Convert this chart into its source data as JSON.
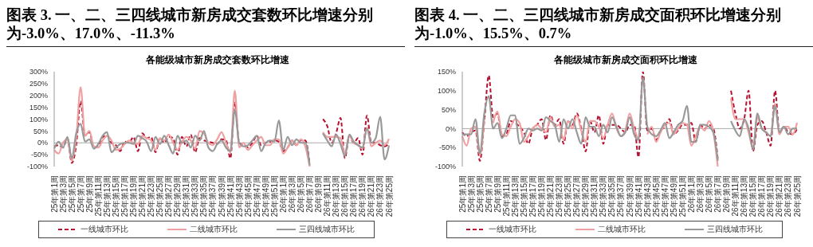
{
  "chart_data": [
    {
      "type": "line",
      "title": "图表 3. 一、二、三四线城市新房成交套数环比增速分别为-3.0%、17.0%、-11.3%",
      "subtitle": "各能级城市新房成交套数环比增速",
      "categories": [
        "25年第1周",
        null,
        "25年第3周",
        null,
        "25年第5周",
        null,
        "25年第7周",
        null,
        "25年第9周",
        null,
        "25年第11周",
        null,
        "25年第13周",
        null,
        "25年第15周",
        null,
        "25年第17周",
        null,
        "25年第19周",
        null,
        "25年第21周",
        null,
        "25年第23周",
        null,
        "25年第25周",
        null,
        "25年第27周",
        null,
        "25年第29周",
        null,
        "25年第31周",
        null,
        "25年第33周",
        null,
        "25年第35周",
        null,
        "25年第37周",
        null,
        "25年第39周",
        null,
        "25年第41周",
        null,
        "25年第43周",
        null,
        "25年第45周",
        null,
        "25年第47周",
        null,
        "25年第49周",
        null,
        "25年第51周",
        null,
        "26年第1周",
        null,
        "26年第3周",
        null,
        "26年第5周",
        null,
        "26年第7周",
        null,
        "26年第9周",
        null,
        "26年第11周",
        null,
        "26年第13周",
        null,
        "26年第15周",
        null,
        "26年第17周",
        null,
        "26年第19周",
        null,
        "26年第21周",
        null,
        "26年第23周",
        null,
        "26年第25周"
      ],
      "series": [
        {
          "name": "一线城市环比",
          "color": "#b5112f",
          "line_style": "dashed",
          "values": [
            -15,
            -10,
            -20,
            20,
            -85,
            -10,
            175,
            30,
            45,
            -20,
            -15,
            25,
            30,
            0,
            -10,
            -35,
            5,
            0,
            25,
            -35,
            40,
            20,
            25,
            -40,
            20,
            0,
            25,
            20,
            -50,
            25,
            -15,
            35,
            -40,
            20,
            10,
            5,
            0,
            -5,
            15,
            10,
            -65,
            170,
            0,
            -10,
            -20,
            0,
            30,
            -10,
            0,
            5,
            10,
            5,
            -35,
            -20,
            10,
            -10,
            10,
            10,
            -90,
            null,
            null,
            100,
            70,
            0,
            40,
            105,
            -65,
            30,
            0,
            20,
            -50,
            115,
            0,
            0,
            -10,
            -15,
            -3
          ]
        },
        {
          "name": "二线城市环比",
          "color": "#f0a0a0",
          "line_style": "solid",
          "values": [
            -30,
            -45,
            0,
            15,
            -75,
            20,
            235,
            30,
            50,
            -15,
            -20,
            10,
            30,
            10,
            -30,
            -25,
            -5,
            10,
            0,
            -5,
            30,
            20,
            10,
            -30,
            20,
            10,
            35,
            0,
            -30,
            5,
            25,
            10,
            -25,
            50,
            40,
            0,
            -10,
            15,
            45,
            0,
            -40,
            220,
            -20,
            0,
            -30,
            -10,
            10,
            25,
            -10,
            -10,
            15,
            15,
            -45,
            -20,
            10,
            -10,
            15,
            -15,
            -100,
            null,
            null,
            45,
            25,
            25,
            25,
            20,
            -45,
            30,
            0,
            -10,
            -25,
            65,
            -15,
            0,
            10,
            -10,
            17
          ]
        },
        {
          "name": "三四线城市环比",
          "color": "#999999",
          "line_style": "solid",
          "values": [
            -25,
            5,
            -20,
            25,
            -65,
            40,
            80,
            5,
            15,
            -25,
            -5,
            30,
            45,
            -40,
            -20,
            -5,
            0,
            0,
            -5,
            30,
            20,
            5,
            -35,
            25,
            -5,
            30,
            -10,
            -45,
            30,
            0,
            10,
            -20,
            30,
            10,
            50,
            -20,
            -35,
            -5,
            10,
            -20,
            -35,
            140,
            0,
            -15,
            -10,
            10,
            30,
            -35,
            0,
            10,
            5,
            95,
            -30,
            25,
            -10,
            15,
            0,
            0,
            -95,
            null,
            null,
            40,
            10,
            -15,
            35,
            -5,
            -55,
            35,
            5,
            -10,
            -20,
            60,
            0,
            20,
            110,
            -70,
            -11.3
          ]
        }
      ],
      "ylim": [
        -100,
        300
      ],
      "yticks": [
        {
          "value": -100,
          "label": "-100%"
        },
        {
          "value": -50,
          "label": "-50%"
        },
        {
          "value": 0,
          "label": "0%"
        },
        {
          "value": 50,
          "label": "50%"
        },
        {
          "value": 100,
          "label": "100%"
        },
        {
          "value": 150,
          "label": "150%"
        },
        {
          "value": 200,
          "label": "200%"
        },
        {
          "value": 250,
          "label": "250%"
        },
        {
          "value": 300,
          "label": "300%"
        }
      ],
      "ref_lines": [
        {
          "axis": "y",
          "value": 0,
          "color": "#aaaaaa"
        }
      ],
      "grid": false,
      "legend": "bottom",
      "marker": "none"
    },
    {
      "type": "line",
      "title": "图表 4. 一、二、三四线城市新房成交面积环比增速分别为-1.0%、15.5%、0.7%",
      "subtitle": "各能级城市新房成交面积环比增速",
      "categories": [
        "25年第1周",
        null,
        "25年第3周",
        null,
        "25年第5周",
        null,
        "25年第7周",
        null,
        "25年第9周",
        null,
        "25年第11周",
        null,
        "25年第13周",
        null,
        "25年第15周",
        null,
        "25年第17周",
        null,
        "25年第19周",
        null,
        "25年第21周",
        null,
        "25年第23周",
        null,
        "25年第25周",
        null,
        "25年第27周",
        null,
        "25年第29周",
        null,
        "25年第31周",
        null,
        "25年第33周",
        null,
        "25年第35周",
        null,
        "25年第37周",
        null,
        "25年第39周",
        null,
        "25年第41周",
        null,
        "25年第43周",
        null,
        "25年第45周",
        null,
        "25年第47周",
        null,
        "25年第49周",
        null,
        "25年第51周",
        null,
        "26年第1周",
        null,
        "26年第3周",
        null,
        "26年第5周",
        null,
        "26年第7周",
        null,
        "26年第9周",
        null,
        "26年第11周",
        null,
        "26年第13周",
        null,
        "26年第15周",
        null,
        "26年第17周",
        null,
        "26年第19周",
        null,
        "26年第21周",
        null,
        "26年第23周",
        null,
        "26年第25周"
      ],
      "series": [
        {
          "name": "一线城市环比",
          "color": "#b5112f",
          "line_style": "dashed",
          "values": [
            -10,
            -20,
            -10,
            -5,
            -85,
            20,
            140,
            30,
            40,
            -20,
            -15,
            20,
            15,
            5,
            -10,
            -40,
            0,
            10,
            25,
            -30,
            35,
            10,
            25,
            -40,
            20,
            10,
            40,
            0,
            -60,
            20,
            -10,
            35,
            -40,
            10,
            10,
            10,
            0,
            -10,
            10,
            10,
            -75,
            150,
            -5,
            0,
            -30,
            -5,
            5,
            25,
            -15,
            -5,
            10,
            10,
            15,
            -35,
            10,
            0,
            10,
            0,
            -80,
            null,
            null,
            100,
            40,
            0,
            25,
            100,
            -60,
            10,
            20,
            -10,
            -45,
            100,
            -10,
            5,
            -10,
            -15,
            -1
          ]
        },
        {
          "name": "二线城市环比",
          "color": "#f0a0a0",
          "line_style": "solid",
          "values": [
            -20,
            -45,
            0,
            5,
            -70,
            30,
            null,
            15,
            45,
            -15,
            -20,
            5,
            25,
            15,
            -35,
            -20,
            0,
            10,
            0,
            -10,
            30,
            5,
            10,
            -30,
            20,
            0,
            35,
            -5,
            -35,
            20,
            20,
            5,
            -25,
            10,
            40,
            0,
            -20,
            -5,
            40,
            0,
            -30,
            null,
            -15,
            5,
            -35,
            -10,
            10,
            15,
            -15,
            0,
            15,
            10,
            -45,
            -20,
            5,
            -5,
            20,
            -10,
            -100,
            null,
            null,
            80,
            25,
            25,
            25,
            -10,
            -50,
            30,
            0,
            -10,
            -20,
            65,
            -15,
            5,
            5,
            -15,
            15.5
          ]
        },
        {
          "name": "三四线城市环比",
          "color": "#999999",
          "line_style": "solid",
          "values": [
            -15,
            -15,
            -15,
            25,
            -65,
            40,
            85,
            0,
            15,
            -25,
            0,
            35,
            35,
            -40,
            -25,
            0,
            -5,
            0,
            -5,
            30,
            20,
            10,
            -35,
            25,
            0,
            25,
            -10,
            -40,
            30,
            5,
            5,
            -20,
            10,
            -10,
            30,
            5,
            -20,
            -10,
            30,
            -15,
            -30,
            135,
            5,
            -15,
            -20,
            -5,
            15,
            -25,
            -10,
            10,
            20,
            60,
            -35,
            -35,
            10,
            10,
            5,
            -10,
            -85,
            null,
            null,
            20,
            -5,
            -20,
            25,
            0,
            -55,
            40,
            0,
            -10,
            -20,
            60,
            -10,
            5,
            -15,
            0,
            0.7
          ]
        }
      ],
      "ylim": [
        -100,
        150
      ],
      "yticks": [
        {
          "value": -100,
          "label": "-100%"
        },
        {
          "value": -50,
          "label": "-50%"
        },
        {
          "value": 0,
          "label": "0%"
        },
        {
          "value": 50,
          "label": "50%"
        },
        {
          "value": 100,
          "label": "100%"
        },
        {
          "value": 150,
          "label": "150%"
        }
      ],
      "ref_lines": [
        {
          "axis": "y",
          "value": 0,
          "color": "#aaaaaa"
        }
      ],
      "grid": false,
      "legend": "bottom",
      "marker": "none"
    }
  ]
}
